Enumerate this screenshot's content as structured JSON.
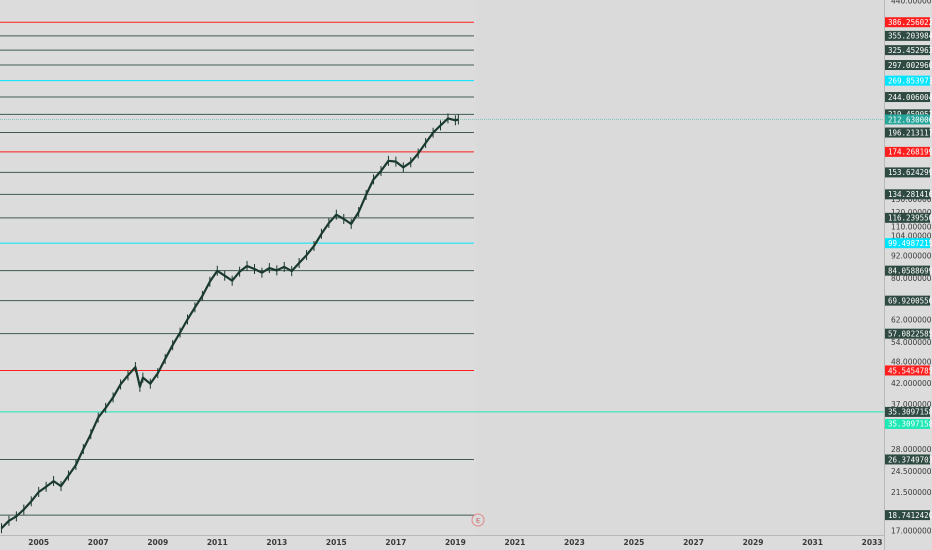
{
  "chart_data": {
    "type": "candlestick-line",
    "title": "",
    "xlabel": "",
    "ylabel": "",
    "scale": "log",
    "ylim": [
      17,
      440
    ],
    "x_range": [
      2004.2,
      2033.9
    ],
    "x_tick_labels": [
      "2005",
      "2007",
      "2009",
      "2011",
      "2013",
      "2015",
      "2017",
      "2019",
      "2021",
      "2023",
      "2025",
      "2027",
      "2029",
      "2031",
      "2033"
    ],
    "y_tick_labels": [
      "440.0000000",
      "130.0000000",
      "120.0000000",
      "110.0000000",
      "104.0000000",
      "92.00000000",
      "80.00000000",
      "62.00000000",
      "54.00000000",
      "48.00000000",
      "42.00000000",
      "37.00000000",
      "28.00000000",
      "24.50000000",
      "21.50000000",
      "17.00000000"
    ],
    "y_tick_values": [
      440,
      130,
      120,
      110,
      104,
      92,
      80,
      62,
      54,
      48,
      42,
      37,
      28,
      24.5,
      21.5,
      17
    ],
    "levels": [
      {
        "value": 386.25602291,
        "label": "386.25602291",
        "color": "#ff1e1e",
        "bg": "#ff1e1e",
        "fg": "#ffffff"
      },
      {
        "value": 355.20398479,
        "label": "355.20398479",
        "color": "#3f5a52",
        "bg": "#2f4a42",
        "fg": "#ffffff"
      },
      {
        "value": 325.45296388,
        "label": "325.45296388",
        "color": "#3f5a52",
        "bg": "#2f4a42",
        "fg": "#ffffff"
      },
      {
        "value": 297.00296019,
        "label": "297.00296019",
        "color": "#3f5a52",
        "bg": "#2f4a42",
        "fg": "#ffffff"
      },
      {
        "value": 269.85397371,
        "label": "269.85397371",
        "color": "#00e5ff",
        "bg": "#00e5ff",
        "fg": "#ffffff"
      },
      {
        "value": 244.00600444,
        "label": "244.00600444",
        "color": "#3f5a52",
        "bg": "#2f4a42",
        "fg": "#ffffff"
      },
      {
        "value": 219.45905239,
        "label": "219.45905239",
        "color": "#3f5a52",
        "bg": "#2f4a42",
        "fg": "#ffffff"
      },
      {
        "value": 196.21311755,
        "label": "196.21311755",
        "color": "#3f5a52",
        "bg": "#2f4a42",
        "fg": "#ffffff"
      },
      {
        "value": 174.26819992,
        "label": "174.26819992",
        "color": "#ff1e1e",
        "bg": "#ff1e1e",
        "fg": "#ffffff"
      },
      {
        "value": 153.62429951,
        "label": "153.62429951",
        "color": "#3f5a52",
        "bg": "#2f4a42",
        "fg": "#ffffff"
      },
      {
        "value": 134.28141631,
        "label": "134.28141631",
        "color": "#3f5a52",
        "bg": "#2f4a42",
        "fg": "#ffffff"
      },
      {
        "value": 116.23955032,
        "label": "116.23955032",
        "color": "#3f5a52",
        "bg": "#2f4a42",
        "fg": "#ffffff"
      },
      {
        "value": 99.49872154,
        "label": "99.49872154",
        "color": "#00e5ff",
        "bg": "#00e5ff",
        "fg": "#ffffff"
      },
      {
        "value": 84.05886998,
        "label": "84.05886998",
        "color": "#3f5a52",
        "bg": "#2f4a42",
        "fg": "#ffffff"
      },
      {
        "value": 69.92005563,
        "label": "69.92005563",
        "color": "#3f5a52",
        "bg": "#2f4a42",
        "fg": "#ffffff"
      },
      {
        "value": 57.0822585,
        "label": "57.08225850",
        "color": "#3f5a52",
        "bg": "#2f4a42",
        "fg": "#ffffff"
      },
      {
        "value": 45.54547857,
        "label": "45.54547857",
        "color": "#ff1e1e",
        "bg": "#ff1e1e",
        "fg": "#ffffff"
      },
      {
        "value": 35.30971586,
        "label": "35.30971586",
        "color": "#1de9b6",
        "bg": "#2f4a42",
        "fg": "#ffffff"
      },
      {
        "value": 26.37497036,
        "label": "26.37497036",
        "color": "#3f5a52",
        "bg": "#2f4a42",
        "fg": "#ffffff"
      },
      {
        "value": 18.74124208,
        "label": "18.74124208",
        "color": "#3f5a52",
        "bg": "#2f4a42",
        "fg": "#ffffff"
      }
    ],
    "extra_labels": [
      {
        "value": 32.8,
        "label": "35.30971586",
        "bg": "#1de9b6",
        "fg": "#ffffff"
      }
    ],
    "current_price": {
      "value": 212.63,
      "label": "212.63000000",
      "bg": "#26a69a",
      "fg": "#ffffff",
      "line_color": "#7fc7c0"
    },
    "series": [
      {
        "name": "",
        "color": "#1b3a2e",
        "x": [
          2004.25,
          2004.5,
          2004.75,
          2005.0,
          2005.25,
          2005.5,
          2005.75,
          2006.0,
          2006.25,
          2006.5,
          2006.75,
          2007.0,
          2007.25,
          2007.5,
          2007.75,
          2008.0,
          2008.25,
          2008.5,
          2008.75,
          2008.9,
          2009.0,
          2009.25,
          2009.5,
          2009.75,
          2010.0,
          2010.25,
          2010.5,
          2010.75,
          2011.0,
          2011.25,
          2011.5,
          2011.75,
          2012.0,
          2012.25,
          2012.5,
          2012.75,
          2013.0,
          2013.25,
          2013.5,
          2013.75,
          2014.0,
          2014.25,
          2014.5,
          2014.75,
          2015.0,
          2015.25,
          2015.5,
          2015.75,
          2016.0,
          2016.25,
          2016.5,
          2016.75,
          2017.0,
          2017.25,
          2017.5,
          2017.75,
          2018.0,
          2018.25,
          2018.5,
          2018.75,
          2019.0,
          2019.25,
          2019.5,
          2019.6
        ],
        "values": [
          17.3,
          18.1,
          18.6,
          19.4,
          20.4,
          21.6,
          22.3,
          23.1,
          22.4,
          23.9,
          25.5,
          28.1,
          30.8,
          34.1,
          36.2,
          38.6,
          41.8,
          44.2,
          46.5,
          41.2,
          43.6,
          42.0,
          44.8,
          48.9,
          53.2,
          57.5,
          62.3,
          67.1,
          72.0,
          78.5,
          84.0,
          81.5,
          79.0,
          83.5,
          86.5,
          84.9,
          83.0,
          85.4,
          84.2,
          86.0,
          83.8,
          88.1,
          92.5,
          97.8,
          105.4,
          112.6,
          118.5,
          115.4,
          112.0,
          120.5,
          133.8,
          147.2,
          155.0,
          165.0,
          164.2,
          158.4,
          163.5,
          172.5,
          184.0,
          196.0,
          205.0,
          214.0,
          211.5,
          212.6
        ]
      }
    ]
  },
  "ui": {
    "scroll_marker": "E"
  }
}
